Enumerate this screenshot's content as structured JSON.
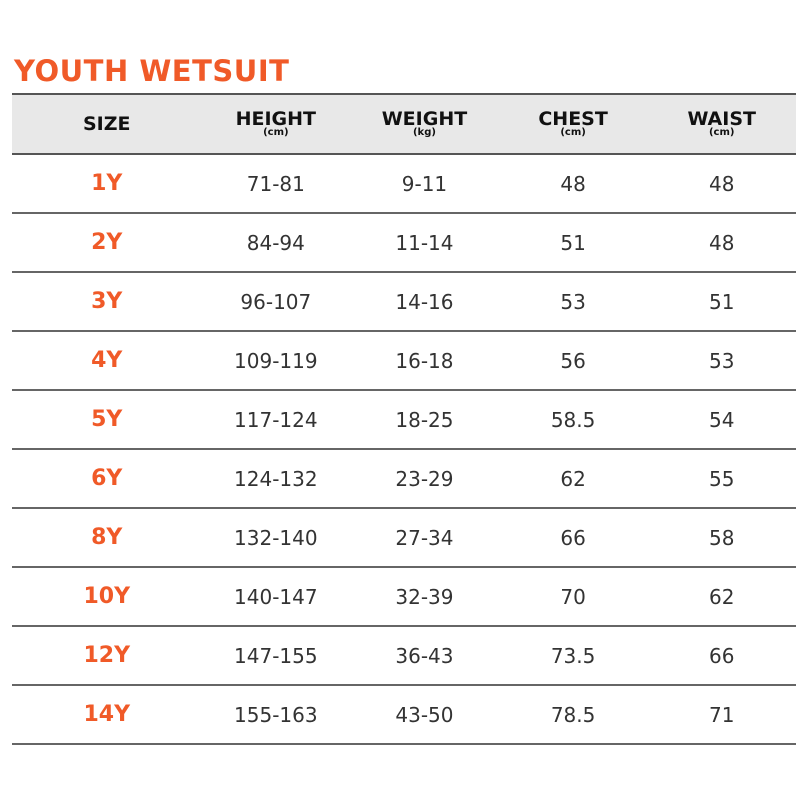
{
  "title": "YOUTH WETSUIT",
  "accent_color": "#f05a28",
  "headers": [
    {
      "label": "SIZE",
      "unit": ""
    },
    {
      "label": "HEIGHT",
      "unit": "(cm)"
    },
    {
      "label": "WEIGHT",
      "unit": "(kg)"
    },
    {
      "label": "CHEST",
      "unit": "(cm)"
    },
    {
      "label": "WAIST",
      "unit": "(cm)"
    }
  ],
  "rows": [
    [
      "1Y",
      "71-81",
      "9-11",
      "48",
      "48"
    ],
    [
      "2Y",
      "84-94",
      "11-14",
      "51",
      "48"
    ],
    [
      "3Y",
      "96-107",
      "14-16",
      "53",
      "51"
    ],
    [
      "4Y",
      "109-119",
      "16-18",
      "56",
      "53"
    ],
    [
      "5Y",
      "117-124",
      "18-25",
      "58.5",
      "54"
    ],
    [
      "6Y",
      "124-132",
      "23-29",
      "62",
      "55"
    ],
    [
      "8Y",
      "132-140",
      "27-34",
      "66",
      "58"
    ],
    [
      "10Y",
      "140-147",
      "32-39",
      "70",
      "62"
    ],
    [
      "12Y",
      "147-155",
      "36-43",
      "73.5",
      "66"
    ],
    [
      "14Y",
      "155-163",
      "43-50",
      "78.5",
      "71"
    ]
  ]
}
